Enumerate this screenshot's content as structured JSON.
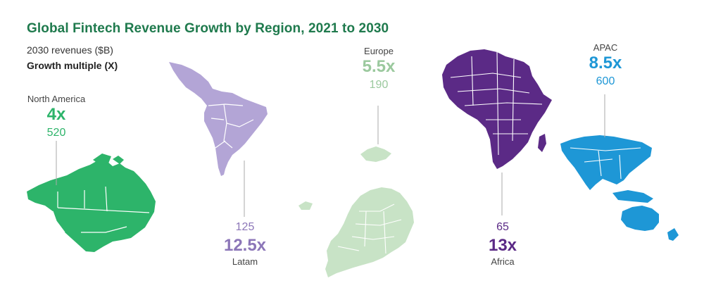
{
  "title": "Global Fintech Revenue Growth by Region, 2021 to 2030",
  "legend": {
    "revenue_label": "2030 revenues ($B)",
    "growth_label": "Growth multiple (X)"
  },
  "regions": {
    "north_america": {
      "name": "North America",
      "multiple": "4x",
      "revenue": "520",
      "color": "#2db46a"
    },
    "latam": {
      "name": "Latam",
      "multiple": "12.5x",
      "revenue": "125",
      "color": "#8c76b8"
    },
    "europe": {
      "name": "Europe",
      "multiple": "5.5x",
      "revenue": "190",
      "color": "#9bc99e"
    },
    "africa": {
      "name": "Africa",
      "multiple": "13x",
      "revenue": "65",
      "color": "#5b2a86"
    },
    "apac": {
      "name": "APAC",
      "multiple": "8.5x",
      "revenue": "600",
      "color": "#1e97d6"
    }
  }
}
